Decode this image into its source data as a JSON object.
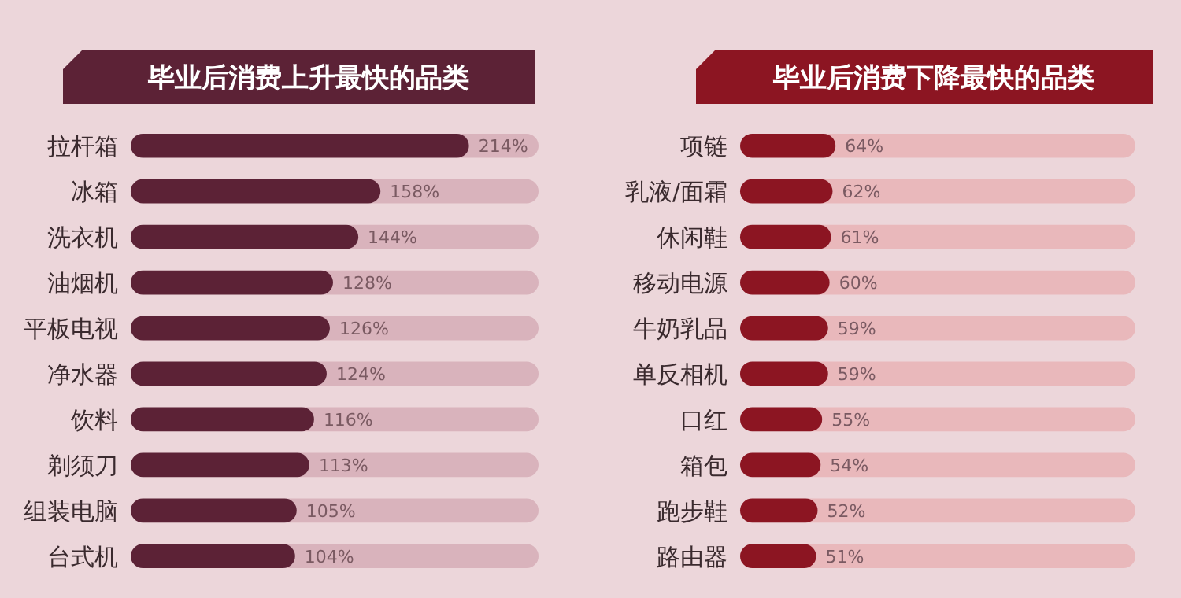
{
  "chart_data": [
    {
      "type": "bar",
      "orientation": "horizontal",
      "title": "毕业后消费上升最快的品类",
      "categories": [
        "拉杆箱",
        "冰箱",
        "洗衣机",
        "油烟机",
        "平板电视",
        "净水器",
        "饮料",
        "剃须刀",
        "组装电脑",
        "台式机"
      ],
      "values": [
        214,
        158,
        144,
        128,
        126,
        124,
        116,
        113,
        105,
        104
      ],
      "value_labels": [
        "214%",
        "158%",
        "144%",
        "128%",
        "126%",
        "124%",
        "116%",
        "113%",
        "105%",
        "104%"
      ],
      "color": "#5c2236",
      "xlim": [
        0,
        258
      ],
      "tick_labels": "y"
    },
    {
      "type": "bar",
      "orientation": "horizontal",
      "title": "毕业后消费下降最快的品类",
      "categories": [
        "项链",
        "乳液/面霜",
        "休闲鞋",
        "移动电源",
        "牛奶乳品",
        "单反相机",
        "口红",
        "箱包",
        "跑步鞋",
        "路由器"
      ],
      "values": [
        64,
        62,
        61,
        60,
        59,
        59,
        55,
        54,
        52,
        51
      ],
      "value_labels": [
        "64%",
        "62%",
        "61%",
        "60%",
        "59%",
        "59%",
        "55%",
        "54%",
        "52%",
        "51%"
      ],
      "color": "#8c1522",
      "xlim": [
        0,
        265
      ],
      "tick_labels": "y"
    }
  ]
}
